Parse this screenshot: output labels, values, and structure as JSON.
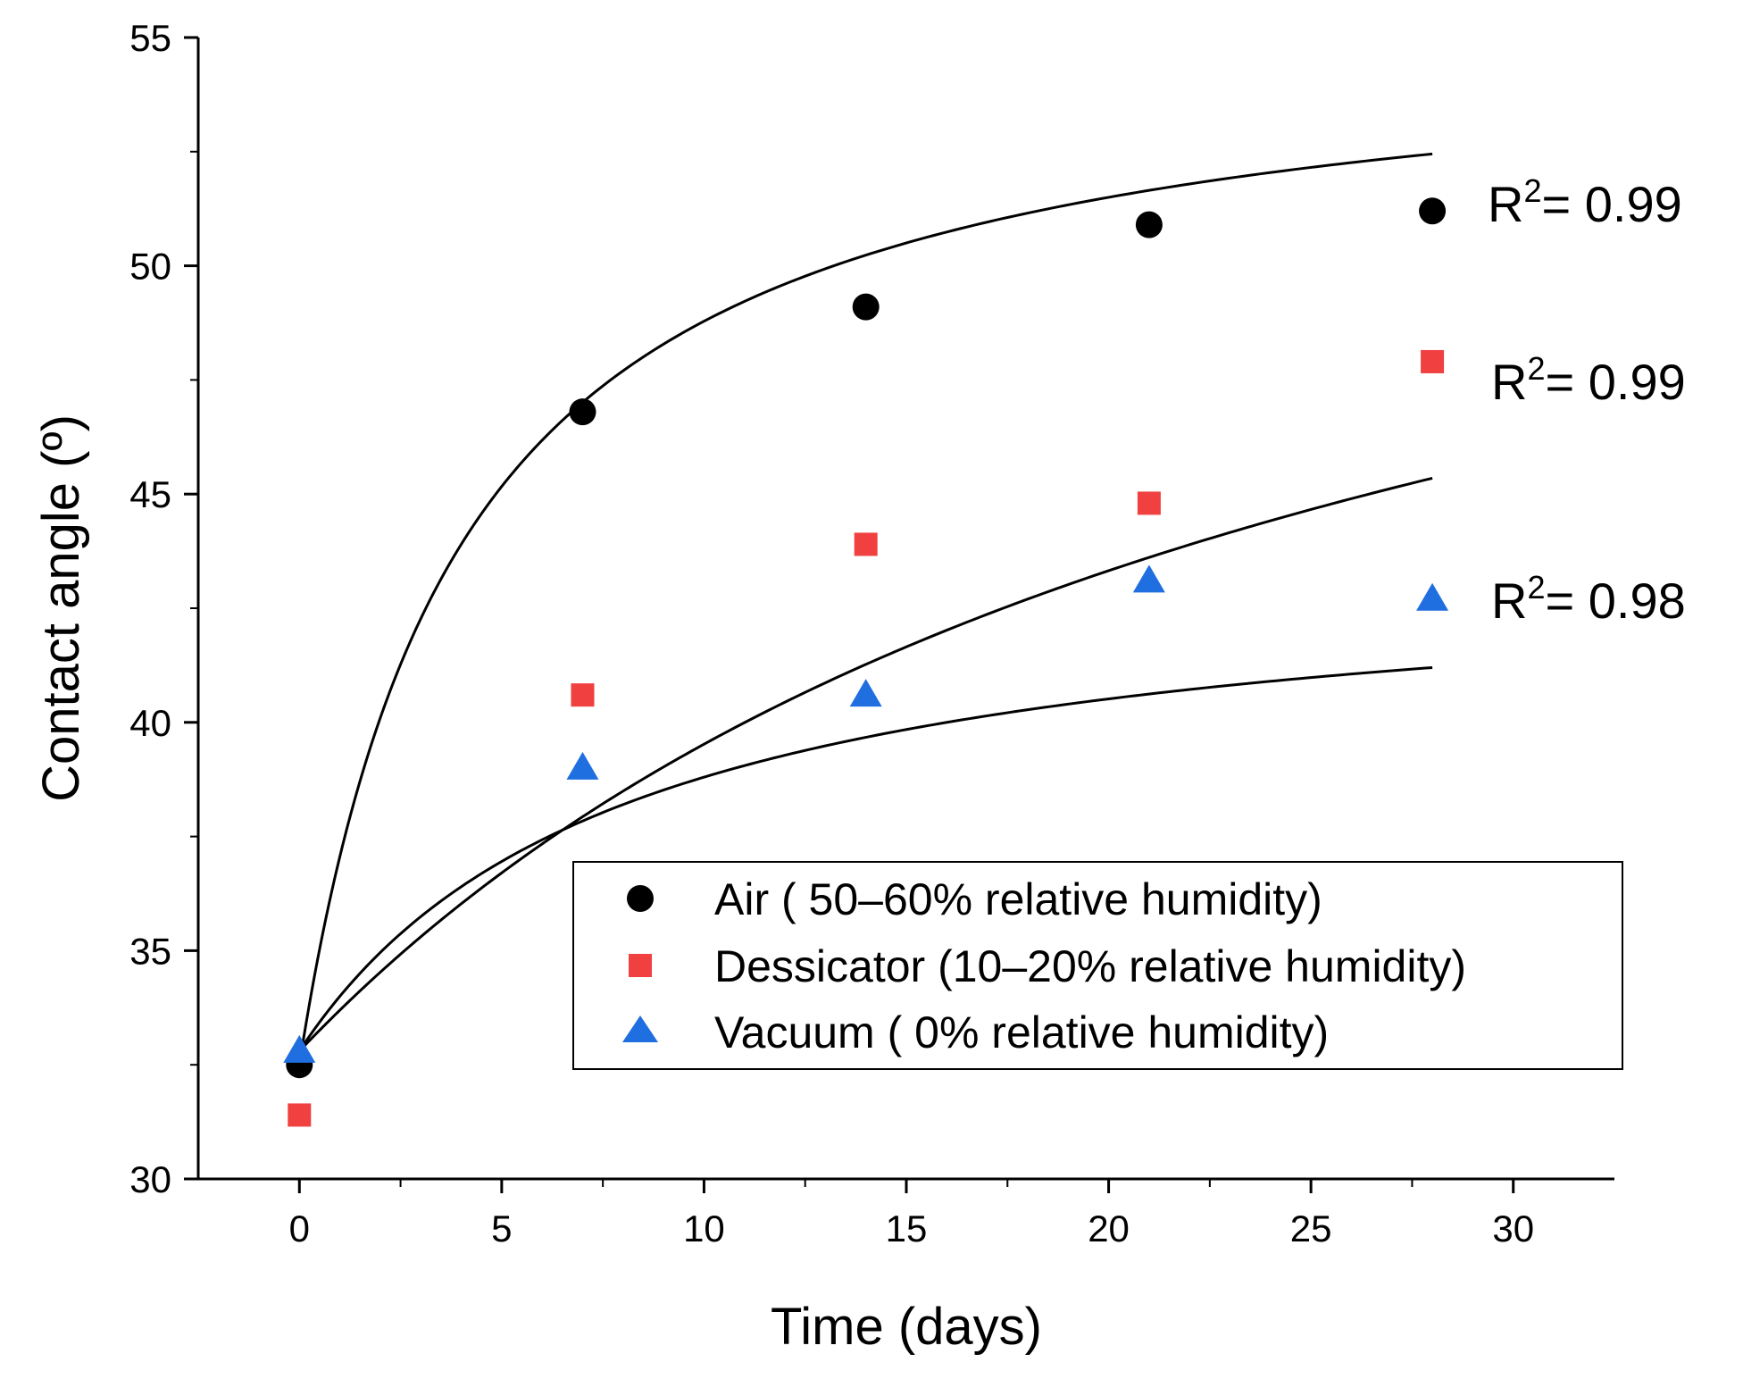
{
  "chart_data": {
    "type": "scatter",
    "title": "",
    "xlabel": "Time (days)",
    "ylabel": "Contact angle (º)",
    "xlim": [
      -2.5,
      32.5
    ],
    "ylim": [
      30,
      55
    ],
    "xticks": [
      0,
      5,
      10,
      15,
      20,
      25,
      30
    ],
    "yticks": [
      30,
      35,
      40,
      45,
      50,
      55
    ],
    "grid": false,
    "legend_position": "bottom-right",
    "series": [
      {
        "name": "Air ( 50–60% relative humidity)",
        "marker": "circle",
        "color": "#000000",
        "x": [
          0,
          7,
          14,
          21,
          28
        ],
        "y": [
          32.5,
          46.8,
          49.1,
          50.9,
          51.2
        ],
        "r2_label": "R",
        "r2_sup": "2",
        "r2_value": "= 0.99",
        "fit": {
          "a": 32.5,
          "b": 22.8,
          "c": 4.0
        }
      },
      {
        "name": "Dessicator (10–20% relative humidity)",
        "marker": "square",
        "color": "#f04040",
        "x": [
          0,
          7,
          14,
          21,
          28
        ],
        "y": [
          31.4,
          40.6,
          43.9,
          44.8,
          47.9
        ],
        "r2_label": "R",
        "r2_sup": "2",
        "r2_value": "= 0.99",
        "fit": {
          "a": 32.8,
          "b": 24.2,
          "c": 26.0
        }
      },
      {
        "name": "Vacuum ( 0% relative humidity)",
        "marker": "triangle",
        "color": "#1f6fe0",
        "x": [
          0,
          7,
          14,
          21,
          28
        ],
        "y": [
          32.8,
          39.0,
          40.6,
          43.1,
          42.7
        ],
        "r2_label": "R",
        "r2_sup": "2",
        "r2_value": "= 0.98",
        "fit": {
          "a": 32.8,
          "b": 10.8,
          "c": 8.0
        }
      }
    ]
  }
}
